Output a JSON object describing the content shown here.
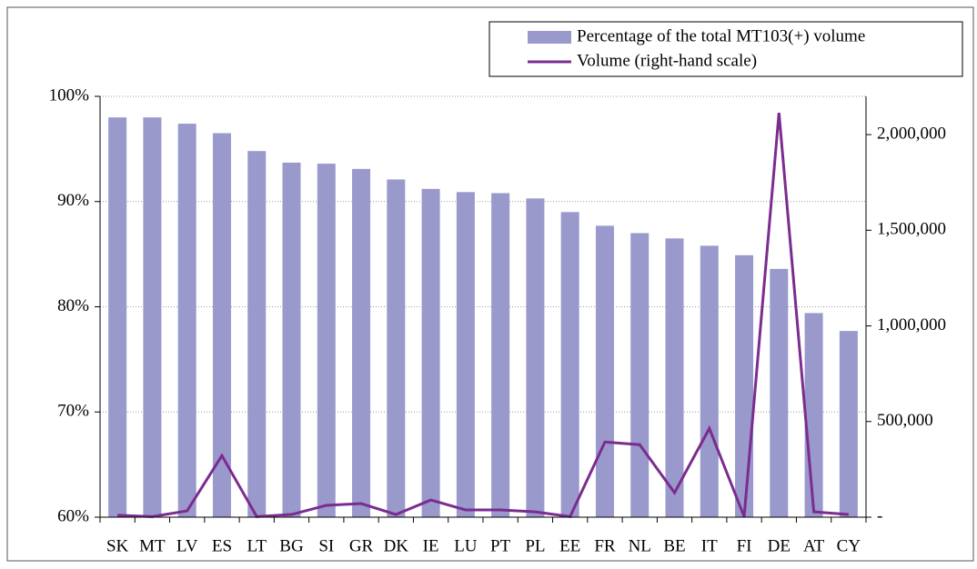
{
  "chart_data": {
    "type": "bar_line",
    "categories": [
      "SK",
      "MT",
      "LV",
      "ES",
      "LT",
      "BG",
      "SI",
      "GR",
      "DK",
      "IE",
      "LU",
      "PT",
      "PL",
      "EE",
      "FR",
      "NL",
      "BE",
      "IT",
      "FI",
      "DE",
      "AT",
      "CY"
    ],
    "series": [
      {
        "name": "Percentage of the total MT103(+) volume",
        "type": "bar",
        "color": "#9999cc",
        "values": [
          98,
          98,
          97.4,
          96.5,
          94.8,
          93.7,
          93.6,
          93.1,
          92.1,
          91.2,
          90.9,
          90.8,
          90.3,
          89,
          87.7,
          87,
          86.5,
          85.8,
          84.9,
          83.6,
          79.4,
          77.7
        ]
      },
      {
        "name": "Volume (right-hand scale)",
        "type": "line",
        "axis": "y2",
        "color": "#7b2c8f",
        "values": [
          10000,
          3000,
          33000,
          322000,
          3000,
          14000,
          62000,
          71000,
          14000,
          90000,
          38000,
          38000,
          28000,
          3000,
          393000,
          379000,
          128000,
          464000,
          3000,
          2114000,
          28000,
          14000
        ]
      }
    ],
    "ylim": [
      60,
      100
    ],
    "yticks": [
      {
        "value": 60,
        "label": "60%"
      },
      {
        "value": 70,
        "label": "70%"
      },
      {
        "value": 80,
        "label": "80%"
      },
      {
        "value": 90,
        "label": "90%"
      },
      {
        "value": 100,
        "label": "100%"
      }
    ],
    "y2lim": [
      0,
      2200000
    ],
    "y2ticks": [
      {
        "value": 0,
        "label": "-"
      },
      {
        "value": 500000,
        "label": "500,000"
      },
      {
        "value": 1000000,
        "label": "1,000,000"
      },
      {
        "value": 1500000,
        "label": "1,500,000"
      },
      {
        "value": 2000000,
        "label": "2,000,000"
      }
    ],
    "grid": true,
    "legend": "top-right"
  }
}
